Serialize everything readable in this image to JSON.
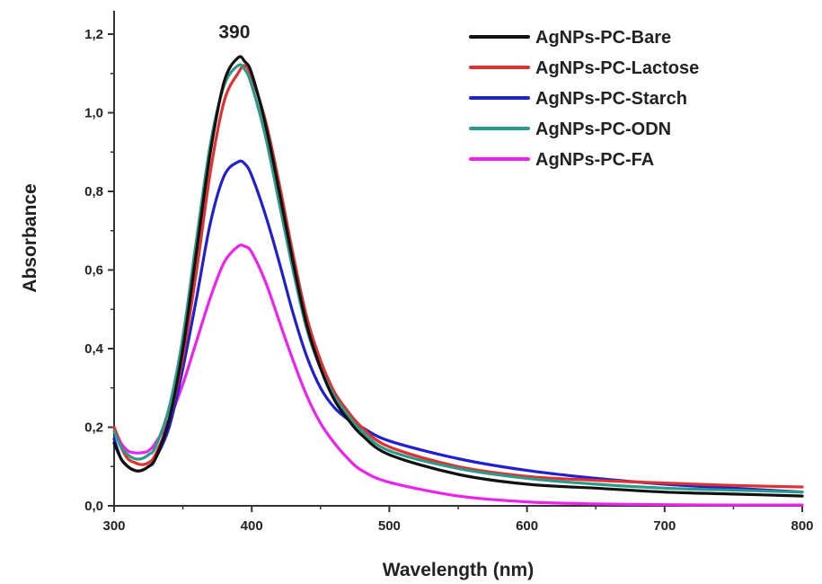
{
  "chart_data": {
    "type": "line",
    "xlabel": "Wavelength (nm)",
    "ylabel": "Absorbance",
    "xlim": [
      300,
      800
    ],
    "ylim": [
      0,
      1.25
    ],
    "xticks": [
      300,
      400,
      500,
      600,
      700,
      800
    ],
    "xtick_labels": [
      "300",
      "400",
      "500",
      "600",
      "700",
      "800"
    ],
    "yticks": [
      0,
      0.2,
      0.4,
      0.6,
      0.8,
      1.0,
      1.2
    ],
    "ytick_labels": [
      "0,0",
      "0,2",
      "0,4",
      "0,6",
      "0,8",
      "1,0",
      "1,2"
    ],
    "grid": false,
    "legend_position": "top-right",
    "annotations": [
      {
        "text": "390",
        "x": 390,
        "y": 1.19
      }
    ],
    "series": [
      {
        "name": "AgNPs-PC-Bare",
        "color": "#111111",
        "x": [
          300,
          305,
          310,
          315,
          320,
          325,
          330,
          340,
          350,
          360,
          370,
          380,
          390,
          395,
          400,
          410,
          420,
          430,
          440,
          450,
          460,
          470,
          480,
          500,
          550,
          600,
          650,
          700,
          750,
          800
        ],
        "y": [
          0.16,
          0.12,
          0.1,
          0.09,
          0.09,
          0.1,
          0.12,
          0.22,
          0.4,
          0.65,
          0.9,
          1.08,
          1.14,
          1.13,
          1.1,
          0.97,
          0.8,
          0.62,
          0.46,
          0.35,
          0.27,
          0.22,
          0.18,
          0.13,
          0.08,
          0.055,
          0.045,
          0.035,
          0.03,
          0.025
        ]
      },
      {
        "name": "AgNPs-PC-Lactose",
        "color": "#e03030",
        "x": [
          300,
          305,
          310,
          315,
          320,
          325,
          330,
          340,
          350,
          360,
          370,
          380,
          390,
          395,
          400,
          410,
          420,
          430,
          440,
          450,
          460,
          470,
          480,
          500,
          550,
          600,
          650,
          700,
          750,
          800
        ],
        "y": [
          0.2,
          0.15,
          0.12,
          0.11,
          0.105,
          0.11,
          0.13,
          0.22,
          0.38,
          0.6,
          0.85,
          1.03,
          1.1,
          1.12,
          1.09,
          0.98,
          0.82,
          0.64,
          0.48,
          0.37,
          0.29,
          0.24,
          0.2,
          0.15,
          0.1,
          0.075,
          0.065,
          0.058,
          0.052,
          0.048
        ]
      },
      {
        "name": "AgNPs-PC-Starch",
        "color": "#2020d0",
        "x": [
          300,
          305,
          310,
          315,
          320,
          325,
          330,
          340,
          350,
          360,
          370,
          380,
          390,
          395,
          400,
          410,
          420,
          430,
          440,
          450,
          460,
          470,
          480,
          500,
          550,
          600,
          650,
          700,
          750,
          800
        ],
        "y": [
          0.17,
          0.12,
          0.1,
          0.09,
          0.09,
          0.1,
          0.12,
          0.2,
          0.35,
          0.53,
          0.72,
          0.84,
          0.875,
          0.87,
          0.84,
          0.74,
          0.62,
          0.49,
          0.38,
          0.3,
          0.25,
          0.22,
          0.2,
          0.165,
          0.12,
          0.09,
          0.07,
          0.055,
          0.045,
          0.035
        ]
      },
      {
        "name": "AgNPs-PC-ODN",
        "color": "#2a9a8a",
        "x": [
          300,
          305,
          310,
          315,
          320,
          325,
          330,
          340,
          350,
          360,
          370,
          380,
          390,
          395,
          400,
          410,
          420,
          430,
          440,
          450,
          460,
          470,
          480,
          500,
          550,
          600,
          650,
          700,
          750,
          800
        ],
        "y": [
          0.19,
          0.15,
          0.13,
          0.12,
          0.12,
          0.13,
          0.15,
          0.25,
          0.43,
          0.68,
          0.92,
          1.07,
          1.12,
          1.11,
          1.07,
          0.94,
          0.77,
          0.6,
          0.45,
          0.35,
          0.28,
          0.23,
          0.19,
          0.14,
          0.095,
          0.07,
          0.055,
          0.045,
          0.04,
          0.035
        ]
      },
      {
        "name": "AgNPs-PC-FA",
        "color": "#ee22ee",
        "x": [
          300,
          305,
          310,
          315,
          320,
          325,
          330,
          340,
          350,
          360,
          370,
          380,
          390,
          395,
          400,
          410,
          420,
          430,
          440,
          450,
          460,
          470,
          480,
          500,
          550,
          600,
          650,
          700,
          750,
          800
        ],
        "y": [
          0.2,
          0.16,
          0.14,
          0.135,
          0.135,
          0.14,
          0.16,
          0.22,
          0.31,
          0.42,
          0.53,
          0.62,
          0.66,
          0.66,
          0.645,
          0.57,
          0.47,
          0.37,
          0.28,
          0.21,
          0.16,
          0.12,
          0.09,
          0.06,
          0.025,
          0.01,
          0.005,
          0.003,
          0.002,
          0.002
        ]
      }
    ]
  }
}
